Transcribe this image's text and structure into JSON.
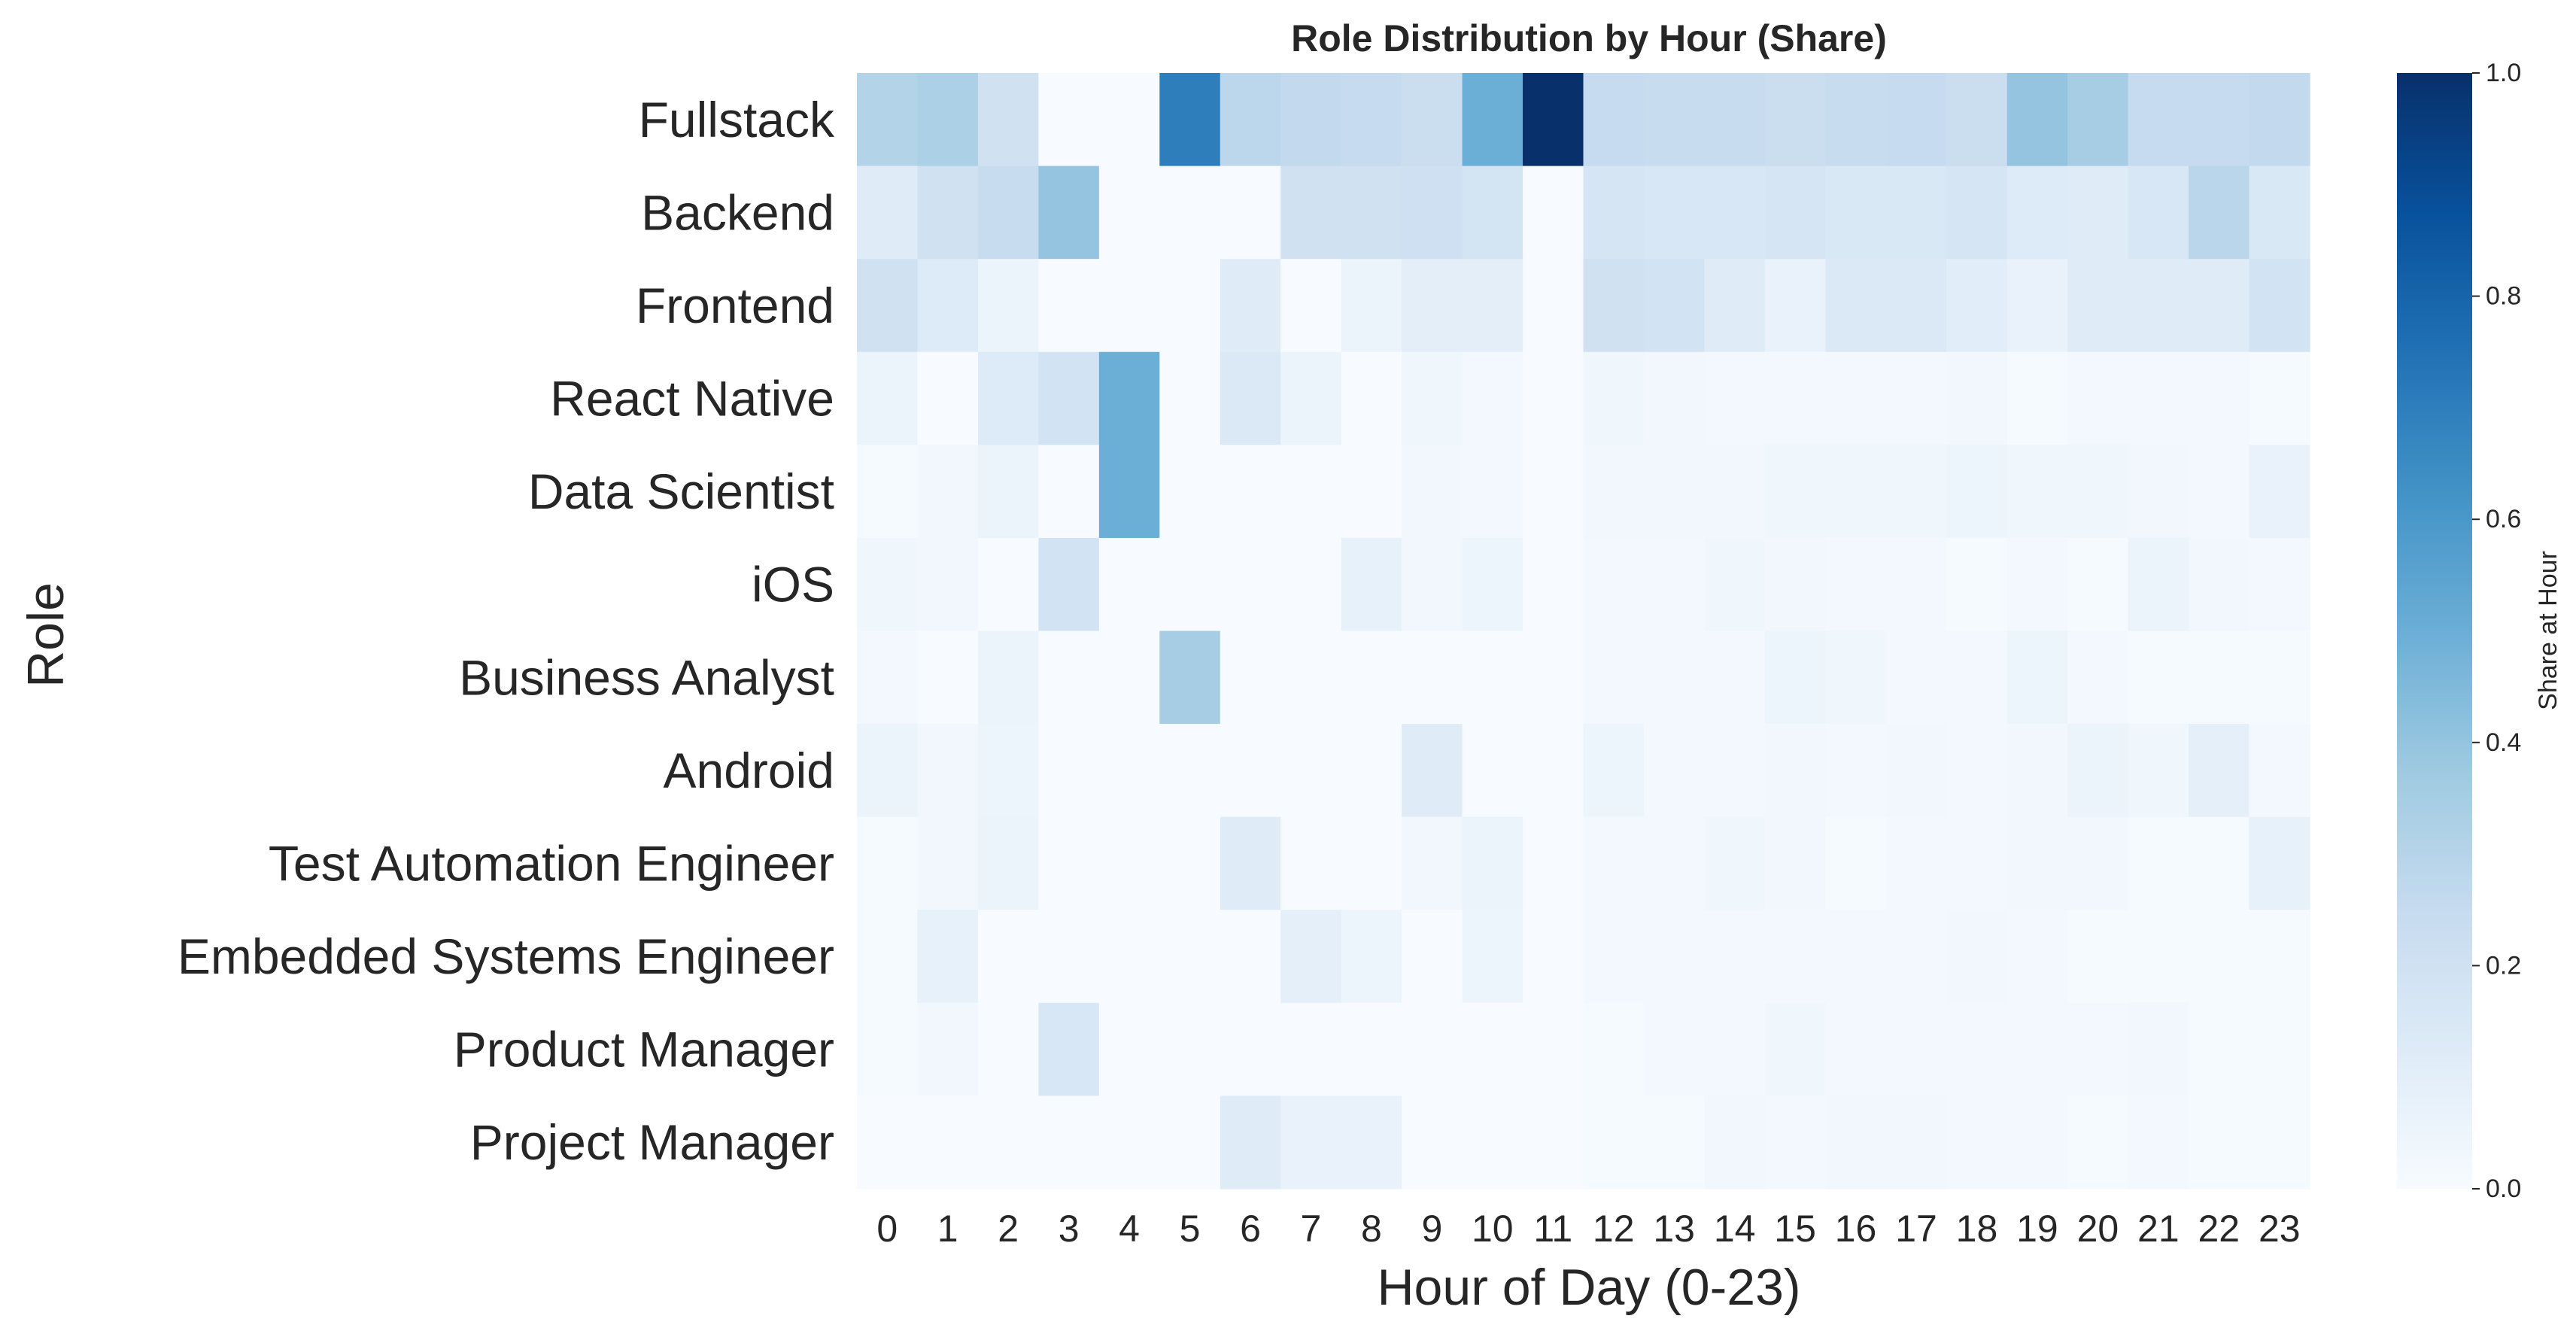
{
  "chart_data": {
    "type": "heatmap",
    "title": "Role Distribution by Hour (Share)",
    "xlabel": "Hour of Day (0-23)",
    "ylabel": "Role",
    "colorbar_label": "Share at Hour",
    "colormap": "Blues",
    "value_range": [
      0.0,
      1.0
    ],
    "colorbar_ticks": [
      "0.0",
      "0.2",
      "0.4",
      "0.6",
      "0.8",
      "1.0"
    ],
    "x_categories": [
      "0",
      "1",
      "2",
      "3",
      "4",
      "5",
      "6",
      "7",
      "8",
      "9",
      "10",
      "11",
      "12",
      "13",
      "14",
      "15",
      "16",
      "17",
      "18",
      "19",
      "20",
      "21",
      "22",
      "23"
    ],
    "y_categories": [
      "Fullstack",
      "Backend",
      "Frontend",
      "React Native",
      "Data Scientist",
      "iOS",
      "Business Analyst",
      "Android",
      "Test Automation Engineer",
      "Embedded Systems Engineer",
      "Product Manager",
      "Project Manager"
    ],
    "values": [
      [
        0.31,
        0.33,
        0.2,
        0.0,
        0.0,
        0.7,
        0.28,
        0.26,
        0.25,
        0.23,
        0.5,
        1.0,
        0.25,
        0.24,
        0.24,
        0.23,
        0.24,
        0.25,
        0.23,
        0.4,
        0.35,
        0.25,
        0.25,
        0.26
      ],
      [
        0.12,
        0.2,
        0.24,
        0.4,
        0.0,
        0.0,
        0.0,
        0.2,
        0.2,
        0.21,
        0.18,
        0.0,
        0.17,
        0.16,
        0.16,
        0.17,
        0.15,
        0.15,
        0.17,
        0.13,
        0.12,
        0.16,
        0.29,
        0.15
      ],
      [
        0.2,
        0.13,
        0.06,
        0.0,
        0.0,
        0.0,
        0.12,
        0.0,
        0.06,
        0.1,
        0.1,
        0.0,
        0.2,
        0.19,
        0.12,
        0.07,
        0.14,
        0.14,
        0.11,
        0.07,
        0.12,
        0.12,
        0.12,
        0.19
      ],
      [
        0.06,
        0.0,
        0.13,
        0.19,
        0.5,
        0.0,
        0.14,
        0.06,
        0.0,
        0.04,
        0.02,
        0.0,
        0.04,
        0.03,
        0.02,
        0.02,
        0.02,
        0.02,
        0.03,
        0.01,
        0.02,
        0.02,
        0.02,
        0.01
      ],
      [
        0.01,
        0.03,
        0.06,
        0.0,
        0.5,
        0.0,
        0.0,
        0.0,
        0.0,
        0.03,
        0.02,
        0.0,
        0.03,
        0.03,
        0.03,
        0.04,
        0.04,
        0.04,
        0.05,
        0.04,
        0.04,
        0.03,
        0.02,
        0.07
      ],
      [
        0.04,
        0.03,
        0.0,
        0.19,
        0.0,
        0.0,
        0.0,
        0.0,
        0.08,
        0.03,
        0.05,
        0.0,
        0.02,
        0.02,
        0.04,
        0.03,
        0.02,
        0.02,
        0.01,
        0.02,
        0.01,
        0.06,
        0.03,
        0.02
      ],
      [
        0.02,
        0.0,
        0.06,
        0.0,
        0.0,
        0.35,
        0.0,
        0.0,
        0.0,
        0.0,
        0.0,
        0.0,
        0.02,
        0.02,
        0.02,
        0.05,
        0.04,
        0.02,
        0.02,
        0.05,
        0.02,
        0.01,
        0.01,
        0.01
      ],
      [
        0.06,
        0.03,
        0.05,
        0.0,
        0.0,
        0.0,
        0.0,
        0.0,
        0.0,
        0.12,
        0.0,
        0.0,
        0.05,
        0.02,
        0.02,
        0.03,
        0.02,
        0.03,
        0.02,
        0.03,
        0.06,
        0.04,
        0.09,
        0.02
      ],
      [
        0.01,
        0.03,
        0.06,
        0.0,
        0.0,
        0.0,
        0.12,
        0.0,
        0.0,
        0.03,
        0.06,
        0.0,
        0.02,
        0.02,
        0.04,
        0.03,
        0.01,
        0.02,
        0.02,
        0.03,
        0.03,
        0.01,
        0.01,
        0.08
      ],
      [
        0.01,
        0.08,
        0.0,
        0.0,
        0.0,
        0.0,
        0.0,
        0.09,
        0.05,
        0.0,
        0.05,
        0.0,
        0.02,
        0.02,
        0.02,
        0.02,
        0.02,
        0.02,
        0.03,
        0.02,
        0.01,
        0.01,
        0.01,
        0.01
      ],
      [
        0.01,
        0.03,
        0.0,
        0.16,
        0.0,
        0.0,
        0.0,
        0.0,
        0.0,
        0.0,
        0.0,
        0.0,
        0.01,
        0.02,
        0.02,
        0.04,
        0.02,
        0.02,
        0.02,
        0.02,
        0.02,
        0.03,
        0.01,
        0.01
      ],
      [
        0.0,
        0.0,
        0.0,
        0.0,
        0.0,
        0.0,
        0.12,
        0.07,
        0.07,
        0.0,
        0.0,
        0.0,
        0.01,
        0.01,
        0.03,
        0.02,
        0.03,
        0.03,
        0.02,
        0.02,
        0.01,
        0.02,
        0.01,
        0.01
      ]
    ]
  }
}
